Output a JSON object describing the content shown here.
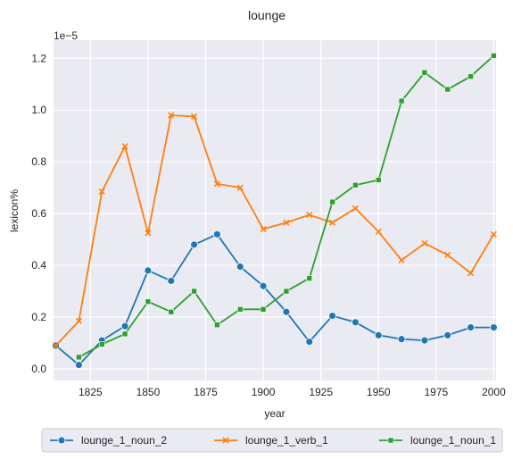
{
  "chart_data": {
    "type": "line",
    "title": "lounge",
    "xlabel": "year",
    "ylabel": "lexicon%",
    "y_multiplier_label": "1e−5",
    "xlim": [
      1809,
      2001
    ],
    "ylim": [
      -0.045,
      1.27
    ],
    "x_ticks": [
      1825,
      1850,
      1875,
      1900,
      1925,
      1950,
      1975,
      2000
    ],
    "y_ticks": [
      0.0,
      0.2,
      0.4,
      0.6,
      0.8,
      1.0,
      1.2
    ],
    "x_tick_labels": [
      "1825",
      "1850",
      "1875",
      "1900",
      "1925",
      "1950",
      "1975",
      "2000"
    ],
    "y_tick_labels": [
      "0.0",
      "0.2",
      "0.4",
      "0.6",
      "0.8",
      "1.0",
      "1.2"
    ],
    "x": [
      1810,
      1820,
      1830,
      1840,
      1850,
      1860,
      1870,
      1880,
      1890,
      1900,
      1910,
      1920,
      1930,
      1940,
      1950,
      1960,
      1970,
      1980,
      1990,
      2000
    ],
    "grid": true,
    "legend_position": "bottom",
    "series": [
      {
        "name": "lounge_1_noun_2",
        "color": "#1f77b4",
        "marker": "circle",
        "x": [
          1810,
          1820,
          1830,
          1840,
          1850,
          1860,
          1870,
          1880,
          1890,
          1900,
          1910,
          1920,
          1930,
          1940,
          1950,
          1960,
          1970,
          1980,
          1990,
          2000
        ],
        "values": [
          0.09,
          0.015,
          0.11,
          0.165,
          0.38,
          0.34,
          0.48,
          0.52,
          0.395,
          0.32,
          0.22,
          0.105,
          0.205,
          0.18,
          0.13,
          0.115,
          0.11,
          0.13,
          0.16,
          0.16
        ]
      },
      {
        "name": "lounge_1_verb_1",
        "color": "#ff7f0e",
        "marker": "x",
        "x": [
          1810,
          1820,
          1830,
          1840,
          1850,
          1860,
          1870,
          1880,
          1890,
          1900,
          1910,
          1920,
          1930,
          1940,
          1950,
          1960,
          1970,
          1980,
          1990,
          2000
        ],
        "values": [
          0.09,
          0.185,
          0.685,
          0.86,
          0.525,
          0.98,
          0.975,
          0.715,
          0.7,
          0.54,
          0.565,
          0.595,
          0.565,
          0.62,
          0.53,
          0.42,
          0.485,
          0.44,
          0.37,
          0.52
        ]
      },
      {
        "name": "lounge_1_noun_1",
        "color": "#2ca02c",
        "marker": "square",
        "x": [
          1820,
          1830,
          1840,
          1850,
          1860,
          1870,
          1880,
          1890,
          1900,
          1910,
          1920,
          1930,
          1940,
          1950,
          1960,
          1970,
          1980,
          1990,
          2000
        ],
        "values": [
          0.045,
          0.095,
          0.135,
          0.26,
          0.22,
          0.3,
          0.17,
          0.23,
          0.23,
          0.3,
          0.35,
          0.645,
          0.71,
          0.73,
          1.035,
          1.145,
          1.08,
          1.13,
          1.21
        ]
      }
    ]
  }
}
